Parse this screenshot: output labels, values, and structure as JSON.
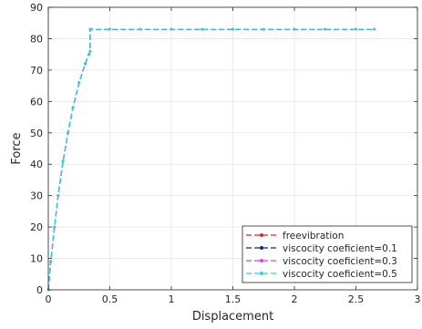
{
  "chart_data": {
    "type": "line",
    "title": "",
    "xlabel": "Displacement",
    "ylabel": "Force",
    "xlim": [
      0,
      3
    ],
    "ylim": [
      0,
      90
    ],
    "xticks": [
      0,
      0.5,
      1,
      1.5,
      2,
      2.5,
      3
    ],
    "xtick_labels": [
      "0",
      "0.5",
      "1",
      "1.5",
      "2",
      "2.5",
      "3"
    ],
    "yticks": [
      0,
      10,
      20,
      30,
      40,
      50,
      60,
      70,
      80,
      90
    ],
    "ytick_labels": [
      "0",
      "10",
      "20",
      "30",
      "40",
      "50",
      "60",
      "70",
      "80",
      "90"
    ],
    "grid": true,
    "legend_position": "bottom-right",
    "series": [
      {
        "name": "freevibration",
        "color": "#d62728",
        "dash": "dashed",
        "marker": "dot",
        "x": [
          0,
          0.02,
          0.05,
          0.08,
          0.12,
          0.16,
          0.2,
          0.25,
          0.3,
          0.33,
          0.34,
          0.34,
          0.35,
          0.5,
          0.75,
          1.0,
          1.25,
          1.5,
          1.75,
          2.0,
          2.25,
          2.5,
          2.65
        ],
        "y": [
          0,
          9,
          20,
          30,
          41,
          50,
          58,
          66,
          72,
          75,
          76,
          83,
          83,
          83,
          83,
          83,
          83,
          83,
          83,
          83,
          83,
          83,
          83
        ]
      },
      {
        "name": "viscocity coeficient=0.1",
        "color": "#1f1f8f",
        "dash": "dashed",
        "marker": "dot",
        "x": [
          0,
          0.02,
          0.05,
          0.08,
          0.12,
          0.16,
          0.2,
          0.25,
          0.3,
          0.33,
          0.34,
          0.34,
          0.35,
          0.5,
          0.75,
          1.0,
          1.25,
          1.5,
          1.75,
          2.0,
          2.25,
          2.5,
          2.65
        ],
        "y": [
          0,
          9,
          20,
          30,
          41,
          50,
          58,
          66,
          72,
          75,
          76,
          83,
          83,
          83,
          83,
          83,
          83,
          83,
          83,
          83,
          83,
          83,
          83
        ]
      },
      {
        "name": "viscocity coeficient=0.3",
        "color": "#d447d4",
        "dash": "dashed",
        "marker": "dot",
        "x": [
          0,
          0.02,
          0.05,
          0.08,
          0.12,
          0.16,
          0.2,
          0.25,
          0.3,
          0.33,
          0.34,
          0.34,
          0.35,
          0.5,
          0.75,
          1.0,
          1.25,
          1.5,
          1.75,
          2.0,
          2.25,
          2.5,
          2.65
        ],
        "y": [
          0,
          9,
          20,
          30,
          41,
          50,
          58,
          66,
          72,
          75,
          76,
          83,
          83,
          83,
          83,
          83,
          83,
          83,
          83,
          83,
          83,
          83,
          83
        ]
      },
      {
        "name": "viscocity coeficient=0.5",
        "color": "#2ad4e6",
        "dash": "dashed",
        "marker": "dot",
        "x": [
          0,
          0.02,
          0.05,
          0.08,
          0.12,
          0.16,
          0.2,
          0.25,
          0.3,
          0.33,
          0.34,
          0.34,
          0.35,
          0.5,
          0.75,
          1.0,
          1.25,
          1.5,
          1.75,
          2.0,
          2.25,
          2.5,
          2.65
        ],
        "y": [
          0,
          9,
          20,
          30,
          41,
          50,
          58,
          66,
          72,
          75,
          76,
          83,
          83,
          83,
          83,
          83,
          83,
          83,
          83,
          83,
          83,
          83,
          83
        ]
      }
    ]
  }
}
